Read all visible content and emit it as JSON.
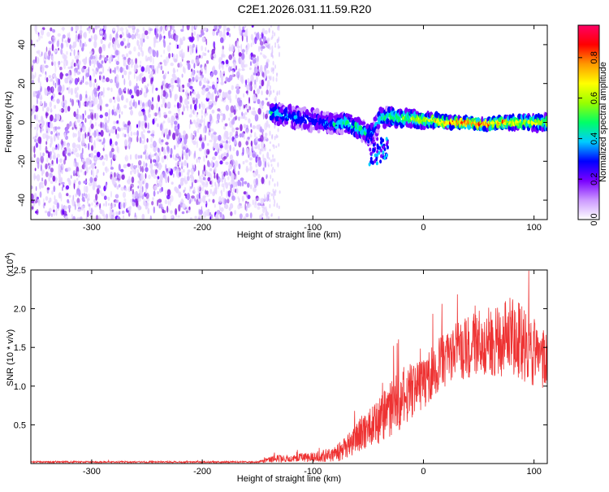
{
  "figure_title": "C2E1.2026.031.11.59.R20",
  "colorbar": {
    "label": "Normalized spectral amplitude",
    "ticks": [
      "0.0",
      "0.2",
      "0.4",
      "0.6",
      "0.8"
    ],
    "tick_values": [
      0.0,
      0.2,
      0.4,
      0.6,
      0.8
    ],
    "range": [
      0,
      0.96
    ],
    "colors": [
      "#ffffff",
      "#cc99ff",
      "#7a00ff",
      "#0000ff",
      "#00ccff",
      "#00ff66",
      "#99ff00",
      "#ffff00",
      "#ff9900",
      "#ff0000",
      "#ff0066"
    ]
  },
  "chart_data": [
    {
      "type": "heatmap",
      "title": "C2E1.2026.031.11.59.R20",
      "xlabel": "Height of straight line (km)",
      "ylabel": "Frequency (Hz)",
      "xlim": [
        -355,
        112
      ],
      "ylim": [
        -50,
        50
      ],
      "x_ticks": [
        -300,
        -200,
        -100,
        0,
        100
      ],
      "x_tick_labels": [
        "-300",
        "-200",
        "-100",
        "0",
        "100"
      ],
      "y_ticks": [
        -40,
        -20,
        0,
        20,
        40
      ],
      "y_tick_labels": [
        "-40",
        "-20",
        "0",
        "20",
        "40"
      ],
      "noise_region_x": [
        -355,
        -140
      ],
      "signal_start_x": -140,
      "signal_track": {
        "x": [
          -138,
          -130,
          -120,
          -110,
          -100,
          -90,
          -80,
          -70,
          -60,
          -50,
          -45,
          -40,
          -30,
          -20,
          -10,
          0,
          10,
          20,
          30,
          40,
          50,
          60,
          70,
          80,
          90,
          100,
          110
        ],
        "freq_hz": [
          5,
          4,
          3,
          2,
          1,
          0,
          -1,
          0,
          -3,
          -6,
          -5,
          2,
          3,
          2,
          2,
          1,
          1,
          0,
          0,
          0,
          -1,
          -1,
          0,
          0,
          0,
          0,
          0
        ],
        "amplitude": [
          0.4,
          0.4,
          0.35,
          0.35,
          0.3,
          0.35,
          0.4,
          0.45,
          0.5,
          0.45,
          0.4,
          0.45,
          0.55,
          0.6,
          0.6,
          0.65,
          0.75,
          0.85,
          0.9,
          0.92,
          0.9,
          0.88,
          0.85,
          0.75,
          0.7,
          0.65,
          0.6
        ]
      },
      "colorbar_label": "Normalized spectral amplitude"
    },
    {
      "type": "line",
      "xlabel": "Height of straight line (km)",
      "ylabel": "SNR (10 * v/v)",
      "y_multiplier_label": "(x10",
      "y_multiplier_exp": "4",
      "y_multiplier_close": ")",
      "xlim": [
        -355,
        112
      ],
      "ylim": [
        0,
        2.5
      ],
      "x_ticks": [
        -300,
        -200,
        -100,
        0,
        100
      ],
      "x_tick_labels": [
        "-300",
        "-200",
        "-100",
        "0",
        "100"
      ],
      "y_ticks": [
        0.5,
        1.0,
        1.5,
        2.0,
        2.5
      ],
      "y_tick_labels": [
        "0.5",
        "1.0",
        "1.5",
        "2.0",
        "2.5"
      ],
      "series": [
        {
          "name": "SNR",
          "color": "#ee3333",
          "x": [
            -355,
            -300,
            -250,
            -200,
            -150,
            -135,
            -120,
            -100,
            -80,
            -70,
            -60,
            -50,
            -40,
            -30,
            -20,
            -10,
            0,
            10,
            20,
            30,
            40,
            50,
            60,
            70,
            80,
            90,
            100,
            105,
            112
          ],
          "y": [
            0.02,
            0.02,
            0.02,
            0.02,
            0.02,
            0.06,
            0.07,
            0.08,
            0.12,
            0.2,
            0.35,
            0.45,
            0.55,
            0.7,
            0.85,
            0.95,
            1.05,
            1.2,
            1.35,
            1.45,
            1.5,
            1.55,
            1.6,
            1.6,
            1.65,
            1.55,
            1.45,
            1.3,
            1.4
          ],
          "noise_amplitude": [
            0.01,
            0.01,
            0.01,
            0.01,
            0.01,
            0.05,
            0.05,
            0.06,
            0.1,
            0.15,
            0.2,
            0.25,
            0.3,
            0.35,
            0.4,
            0.35,
            0.35,
            0.35,
            0.35,
            0.4,
            0.4,
            0.45,
            0.45,
            0.5,
            0.5,
            0.5,
            0.45,
            0.4,
            0.35
          ]
        }
      ]
    }
  ]
}
